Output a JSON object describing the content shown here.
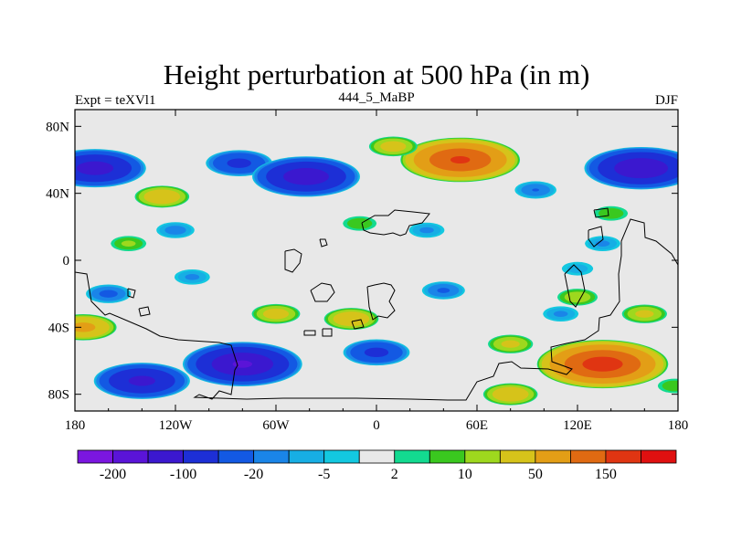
{
  "chart_data": {
    "type": "heatmap",
    "title": "Height perturbation at 500 hPa (in m)",
    "left_label": "Expt = teXVl1",
    "center_label": "444_5_MaBP",
    "right_label": "DJF",
    "x_range": [
      -180,
      180
    ],
    "y_range": [
      -90,
      90
    ],
    "x_ticks": [
      {
        "value": -180,
        "label": "180"
      },
      {
        "value": -120,
        "label": "120W"
      },
      {
        "value": -60,
        "label": "60W"
      },
      {
        "value": 0,
        "label": "0"
      },
      {
        "value": 60,
        "label": "60E"
      },
      {
        "value": 120,
        "label": "120E"
      },
      {
        "value": 180,
        "label": "180"
      }
    ],
    "y_ticks": [
      {
        "value": 80,
        "label": "80N"
      },
      {
        "value": 40,
        "label": "40N"
      },
      {
        "value": 0,
        "label": "0"
      },
      {
        "value": -40,
        "label": "40S"
      },
      {
        "value": -80,
        "label": "80S"
      }
    ],
    "contour_levels": [
      -200,
      -150,
      -100,
      -50,
      -20,
      -10,
      -5,
      -2,
      2,
      5,
      10,
      20,
      50,
      100,
      150,
      200
    ],
    "colorbar_labels": [
      {
        "level": -200,
        "label": "-200"
      },
      {
        "level": -100,
        "label": "-100"
      },
      {
        "level": -20,
        "label": "-20"
      },
      {
        "level": -5,
        "label": "-5"
      },
      {
        "level": 2,
        "label": "2"
      },
      {
        "level": 10,
        "label": "10"
      },
      {
        "level": 50,
        "label": "50"
      },
      {
        "level": 150,
        "label": "150"
      }
    ],
    "colors": [
      "#7b16e0",
      "#5a14d8",
      "#3b18cf",
      "#1d2fd6",
      "#1359e3",
      "#1a85e8",
      "#17aee4",
      "#13c8e0",
      "#e8e8e8",
      "#13da90",
      "#3ac81f",
      "#9ed81e",
      "#d6c31a",
      "#e39e16",
      "#e06a12",
      "#e03512",
      "#e01010"
    ],
    "background_color": "#e8e8e8",
    "anomaly_centers": [
      {
        "lon": -168,
        "lat": 55,
        "value": -120
      },
      {
        "lon": -128,
        "lat": 38,
        "value": 40
      },
      {
        "lon": -148,
        "lat": 10,
        "value": 12
      },
      {
        "lon": -82,
        "lat": 58,
        "value": -60
      },
      {
        "lon": -42,
        "lat": 50,
        "value": -130
      },
      {
        "lon": 50,
        "lat": 60,
        "value": 150
      },
      {
        "lon": 10,
        "lat": 68,
        "value": 30
      },
      {
        "lon": 158,
        "lat": 55,
        "value": -140
      },
      {
        "lon": 135,
        "lat": 10,
        "value": -12
      },
      {
        "lon": 140,
        "lat": 28,
        "value": 10
      },
      {
        "lon": 95,
        "lat": 42,
        "value": -20
      },
      {
        "lon": -10,
        "lat": 22,
        "value": 10
      },
      {
        "lon": 30,
        "lat": 18,
        "value": -12
      },
      {
        "lon": -120,
        "lat": 18,
        "value": -15
      },
      {
        "lon": -160,
        "lat": -20,
        "value": -25
      },
      {
        "lon": -110,
        "lat": -10,
        "value": -12
      },
      {
        "lon": 40,
        "lat": -18,
        "value": -22
      },
      {
        "lon": 120,
        "lat": -22,
        "value": 18
      },
      {
        "lon": 120,
        "lat": -5,
        "value": -8
      },
      {
        "lon": -175,
        "lat": -40,
        "value": 60
      },
      {
        "lon": -60,
        "lat": -32,
        "value": 30
      },
      {
        "lon": -15,
        "lat": -35,
        "value": 40
      },
      {
        "lon": 110,
        "lat": -32,
        "value": -12
      },
      {
        "lon": 160,
        "lat": -32,
        "value": 25
      },
      {
        "lon": -80,
        "lat": -62,
        "value": -150
      },
      {
        "lon": -140,
        "lat": -72,
        "value": -110
      },
      {
        "lon": 0,
        "lat": -55,
        "value": -60
      },
      {
        "lon": 80,
        "lat": -50,
        "value": 25
      },
      {
        "lon": 135,
        "lat": -62,
        "value": 170
      },
      {
        "lon": 80,
        "lat": -80,
        "value": 40
      },
      {
        "lon": 178,
        "lat": -75,
        "value": 10
      }
    ]
  }
}
